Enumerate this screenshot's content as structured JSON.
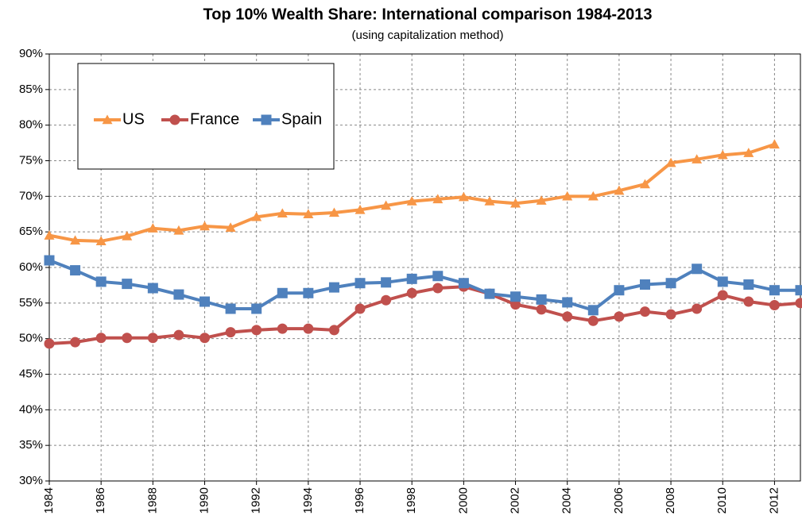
{
  "chart_data": {
    "type": "line",
    "title": "Top 10% Wealth Share: International comparison 1984-2013",
    "subtitle": "(using capitalization method)",
    "x": [
      1984,
      1985,
      1986,
      1987,
      1988,
      1989,
      1990,
      1991,
      1992,
      1993,
      1994,
      1995,
      1996,
      1997,
      1998,
      1999,
      2000,
      2001,
      2002,
      2003,
      2004,
      2005,
      2006,
      2007,
      2008,
      2009,
      2010,
      2011,
      2012,
      2013
    ],
    "series": [
      {
        "name": "US",
        "color": "#f79646",
        "marker": "triangle",
        "values": [
          64.5,
          63.8,
          63.7,
          64.4,
          65.5,
          65.2,
          65.8,
          65.6,
          67.1,
          67.6,
          67.5,
          67.7,
          68.1,
          68.7,
          69.3,
          69.6,
          69.9,
          69.3,
          69.0,
          69.4,
          70.0,
          70.0,
          70.8,
          71.7,
          74.7,
          75.2,
          75.8,
          76.1,
          77.3,
          null
        ]
      },
      {
        "name": "France",
        "color": "#c0504d",
        "marker": "circle",
        "values": [
          49.3,
          49.5,
          50.1,
          50.1,
          50.1,
          50.5,
          50.1,
          50.9,
          51.2,
          51.4,
          51.4,
          51.2,
          54.2,
          55.4,
          56.4,
          57.1,
          57.3,
          56.3,
          54.8,
          54.1,
          53.1,
          52.5,
          53.1,
          53.8,
          53.4,
          54.2,
          56.1,
          55.2,
          54.7,
          55.0
        ]
      },
      {
        "name": "Spain",
        "color": "#4f81bd",
        "marker": "square",
        "values": [
          61.0,
          59.6,
          58.0,
          57.7,
          57.1,
          56.2,
          55.2,
          54.2,
          54.2,
          56.4,
          56.4,
          57.2,
          57.8,
          57.9,
          58.4,
          58.8,
          57.8,
          56.3,
          55.9,
          55.5,
          55.1,
          54.0,
          56.8,
          57.6,
          57.8,
          59.8,
          58.0,
          57.6,
          56.8,
          56.8
        ]
      }
    ],
    "xlim": [
      1984,
      2013
    ],
    "xticks": [
      1984,
      1986,
      1988,
      1990,
      1992,
      1994,
      1996,
      1998,
      2000,
      2002,
      2004,
      2006,
      2008,
      2010,
      2012
    ],
    "ylim": [
      30,
      90
    ],
    "yticks": [
      {
        "value": 30,
        "label": "30%"
      },
      {
        "value": 35,
        "label": "35%"
      },
      {
        "value": 40,
        "label": "40%"
      },
      {
        "value": 45,
        "label": "45%"
      },
      {
        "value": 50,
        "label": "50%"
      },
      {
        "value": 55,
        "label": "55%"
      },
      {
        "value": 60,
        "label": "60%"
      },
      {
        "value": 65,
        "label": "65%"
      },
      {
        "value": 70,
        "label": "70%"
      },
      {
        "value": 75,
        "label": "75%"
      },
      {
        "value": 80,
        "label": "80%"
      },
      {
        "value": 85,
        "label": "85%"
      },
      {
        "value": 90,
        "label": "90%"
      }
    ],
    "grid": true
  }
}
